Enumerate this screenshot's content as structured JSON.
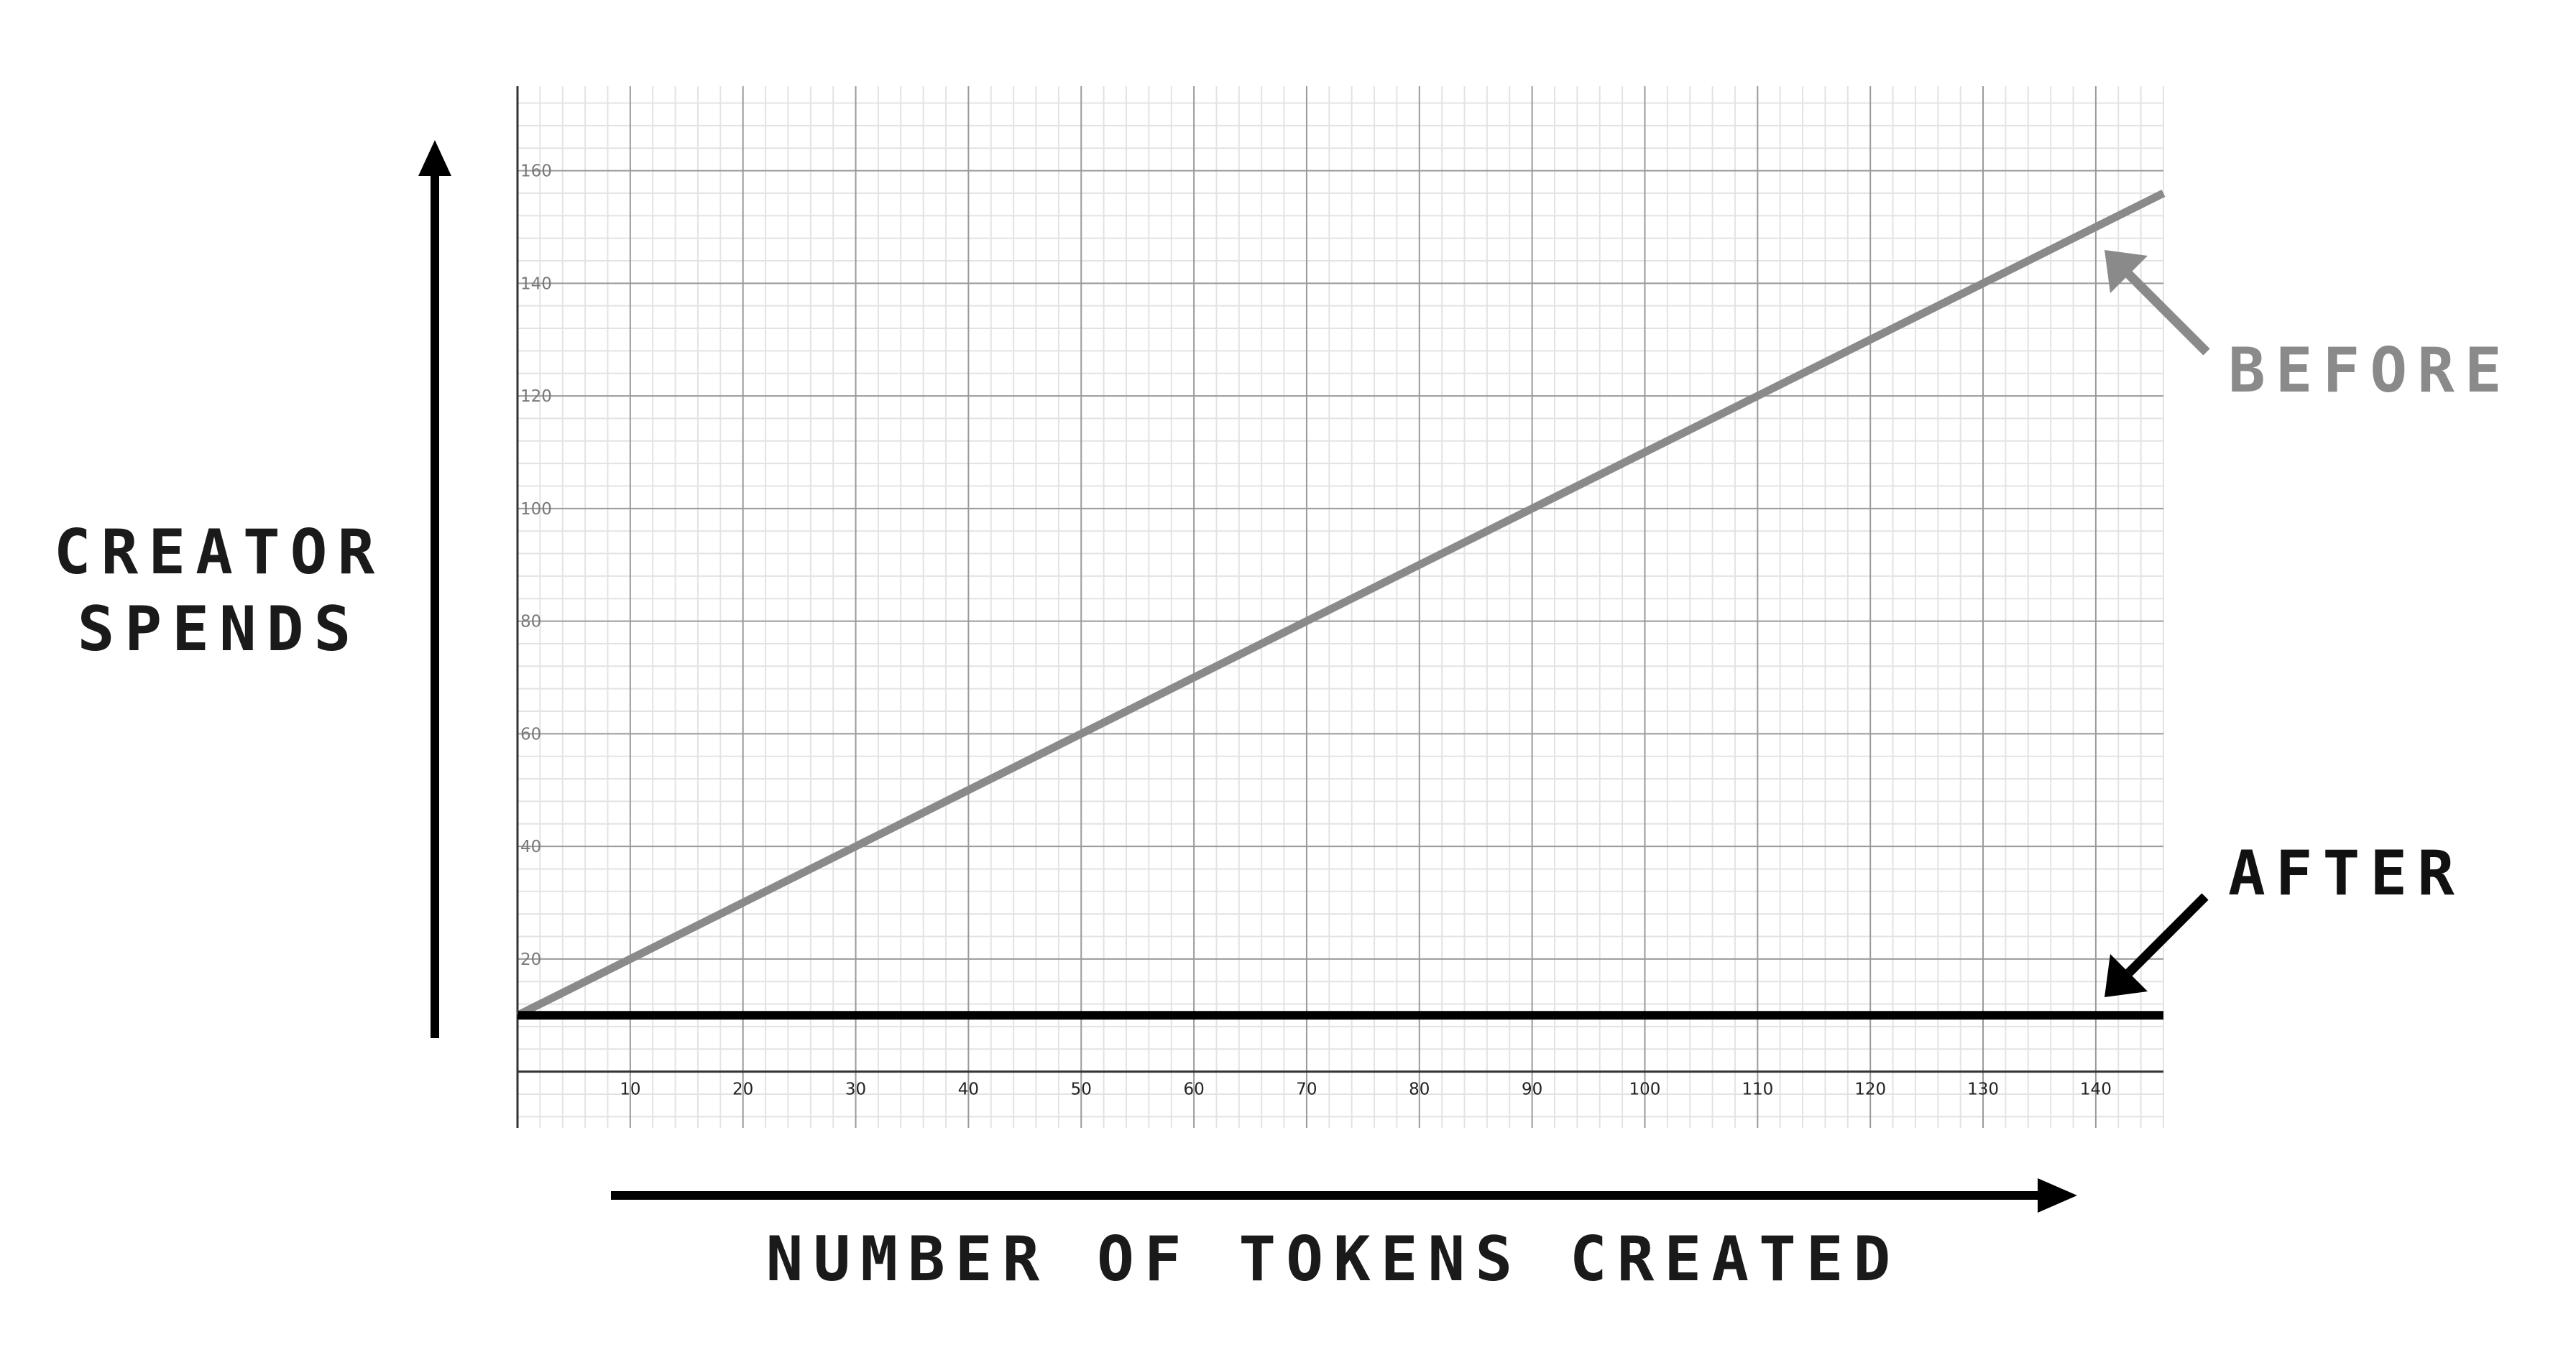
{
  "chart_data": {
    "type": "line",
    "xlabel": "NUMBER OF TOKENS CREATED",
    "ylabel_lines": [
      "CREATOR",
      "SPENDS"
    ],
    "xlim": [
      0,
      146
    ],
    "ylim": [
      -10,
      175
    ],
    "x_ticks": [
      10,
      20,
      30,
      40,
      50,
      60,
      70,
      80,
      90,
      100,
      110,
      120,
      130,
      140
    ],
    "y_ticks": [
      20,
      40,
      60,
      80,
      100,
      120,
      140,
      160
    ],
    "grid": true,
    "series": [
      {
        "name": "BEFORE",
        "color": "#8a8a8a",
        "x": [
          0,
          146
        ],
        "y": [
          10,
          156
        ]
      },
      {
        "name": "AFTER",
        "color": "#000000",
        "x": [
          0,
          146
        ],
        "y": [
          10,
          10
        ]
      }
    ]
  }
}
